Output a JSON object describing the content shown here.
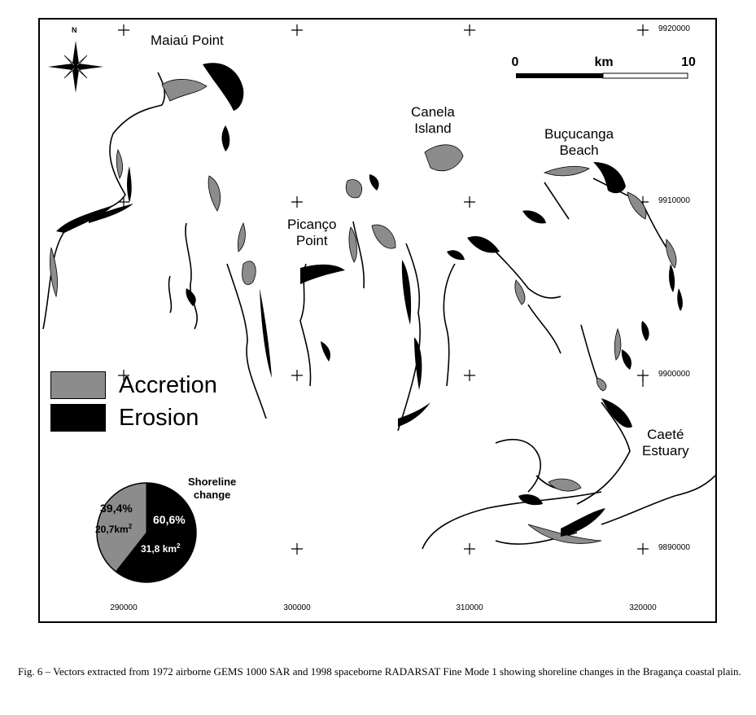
{
  "colors": {
    "accretion": "#8c8c8c",
    "erosion": "#000000",
    "background": "#ffffff"
  },
  "north_arrow": {
    "label": "N",
    "icon": "compass-rose-icon"
  },
  "places": {
    "maiau_point": "Maiaú Point",
    "canela_line1": "Canela",
    "canela_line2": "Island",
    "bucucanga_line1": "Buçucanga",
    "bucucanga_line2": "Beach",
    "picanco_line1": "Picanço",
    "picanco_line2": "Point",
    "caete_line1": "Caeté",
    "caete_line2": "Estuary"
  },
  "scale_bar": {
    "start": "0",
    "unit": "km",
    "end": "10"
  },
  "grid": {
    "eastings": [
      "290000",
      "300000",
      "310000",
      "320000"
    ],
    "northings": [
      "9920000",
      "9910000",
      "9900000",
      "9890000"
    ]
  },
  "legend": [
    {
      "label": "Accretion",
      "color": "#8c8c8c"
    },
    {
      "label": "Erosion",
      "color": "#000000"
    }
  ],
  "shoreline_change": {
    "title_line1": "Shoreline",
    "title_line2": "change",
    "accretion_percent": "39,4%",
    "accretion_area": "20,7km",
    "erosion_percent": "60,6%",
    "erosion_area": "31,8 km",
    "superscript": "2",
    "accretion_fraction": 0.394,
    "erosion_fraction": 0.606
  },
  "caption_text": "Fig.  6 – Vectors extracted from 1972 airborne GEMS 1000 SAR and 1998 spaceborne RADARSAT Fine Mode 1 showing shoreline changes in the Bragança coastal plain."
}
